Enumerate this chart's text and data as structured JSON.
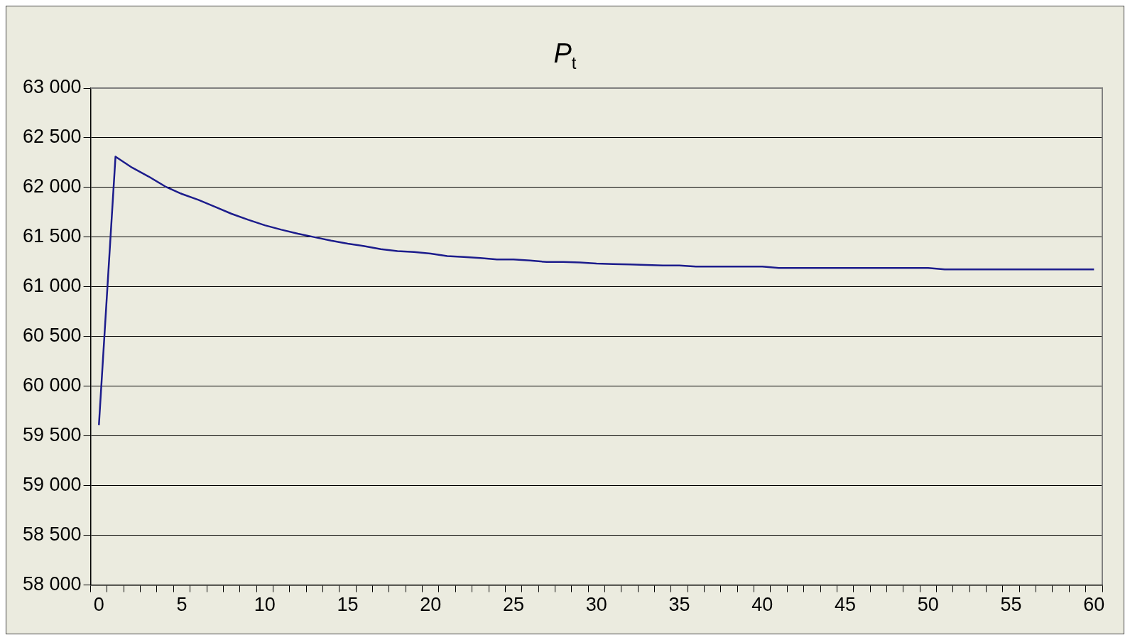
{
  "chart_data": {
    "type": "line",
    "title": "P$_{t}$",
    "categories": [
      "0",
      null,
      null,
      null,
      null,
      "5",
      null,
      null,
      null,
      null,
      "10",
      null,
      null,
      null,
      null,
      "15",
      null,
      null,
      null,
      null,
      "20",
      null,
      null,
      null,
      null,
      "25",
      null,
      null,
      null,
      null,
      "30",
      null,
      null,
      null,
      null,
      "35",
      null,
      null,
      null,
      null,
      "40",
      null,
      null,
      null,
      null,
      "45",
      null,
      null,
      null,
      null,
      "50",
      null,
      null,
      null,
      null,
      "55",
      null,
      null,
      null,
      null,
      "60"
    ],
    "series": [
      {
        "color": "#1c1c8c",
        "values": [
          59610,
          62310,
          62200,
          62110,
          62010,
          61935,
          61875,
          61805,
          61735,
          61675,
          61620,
          61575,
          61535,
          61500,
          61465,
          61435,
          61410,
          61380,
          61360,
          61350,
          61335,
          61310,
          61300,
          61290,
          61275,
          61275,
          61265,
          61250,
          61250,
          61245,
          61235,
          61230,
          61225,
          61220,
          61215,
          61215,
          61205,
          61205,
          61205,
          61205,
          61205,
          61190,
          61190,
          61190,
          61190,
          61190,
          61190,
          61190,
          61190,
          61190,
          61190,
          61175,
          61175,
          61175,
          61175,
          61175,
          61175,
          61175,
          61175,
          61175,
          61175
        ]
      }
    ],
    "ylim": [
      58000,
      63000
    ],
    "yticks": [
      {
        "value": 58000,
        "label": "58 000"
      },
      {
        "value": 58500,
        "label": "58 500"
      },
      {
        "value": 59000,
        "label": "59 000"
      },
      {
        "value": 59500,
        "label": "59 500"
      },
      {
        "value": 60000,
        "label": "60 000"
      },
      {
        "value": 60500,
        "label": "60 500"
      },
      {
        "value": 61000,
        "label": "61 000"
      },
      {
        "value": 61500,
        "label": "61 500"
      },
      {
        "value": 62000,
        "label": "62 000"
      },
      {
        "value": 62500,
        "label": "62 500"
      },
      {
        "value": 63000,
        "label": "63 000"
      }
    ],
    "grid": "y",
    "legend": false,
    "marker": "none",
    "line_style": "solid"
  }
}
